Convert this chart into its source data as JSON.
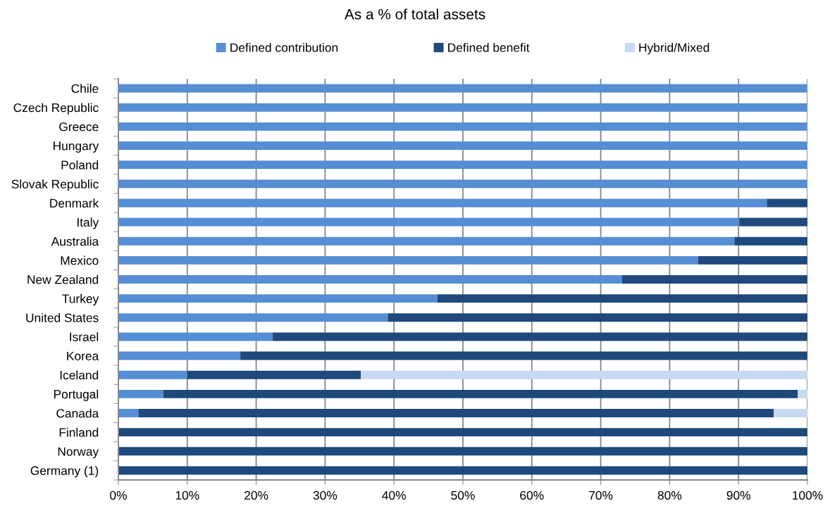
{
  "chart_data": {
    "type": "bar",
    "orientation": "horizontal",
    "stacked": true,
    "title": "As a % of total assets",
    "categories": [
      "Chile",
      "Czech Republic",
      "Greece",
      "Hungary",
      "Poland",
      "Slovak Republic",
      "Denmark",
      "Italy",
      "Australia",
      "Mexico",
      "New Zealand",
      "Turkey",
      "United States",
      "Israel",
      "Korea",
      "Iceland",
      "Portugal",
      "Canada",
      "Finland",
      "Norway",
      "Germany (1)"
    ],
    "series": [
      {
        "name": "Defined contribution",
        "color": "#558ed5",
        "values": [
          100,
          100,
          100,
          100,
          100,
          100,
          94.1,
          90.1,
          89.4,
          84.1,
          73.1,
          46.3,
          39.1,
          22.4,
          17.7,
          10.0,
          6.5,
          2.9,
          null,
          null,
          null
        ]
      },
      {
        "name": "Defined benefit",
        "color": "#1f497d",
        "values": [
          null,
          null,
          null,
          null,
          null,
          null,
          5.9,
          9.9,
          10.6,
          15.9,
          26.9,
          53.7,
          60.9,
          77.6,
          82.3,
          25.2,
          92.1,
          92.2,
          100,
          100,
          100
        ]
      },
      {
        "name": "Hybrid/Mixed",
        "color": "#c6d9f1",
        "values": [
          null,
          null,
          null,
          null,
          null,
          null,
          null,
          null,
          null,
          null,
          null,
          null,
          null,
          null,
          null,
          64.8,
          1.4,
          4.9,
          null,
          null,
          null
        ]
      }
    ],
    "xlim": [
      0,
      100
    ],
    "xticks": [
      {
        "value": 0,
        "label": "0%"
      },
      {
        "value": 10,
        "label": "10%"
      },
      {
        "value": 20,
        "label": "20%"
      },
      {
        "value": 30,
        "label": "30%"
      },
      {
        "value": 40,
        "label": "40%"
      },
      {
        "value": 50,
        "label": "50%"
      },
      {
        "value": 60,
        "label": "60%"
      },
      {
        "value": 70,
        "label": "70%"
      },
      {
        "value": 80,
        "label": "80%"
      },
      {
        "value": 90,
        "label": "90%"
      },
      {
        "value": 100,
        "label": "100%"
      }
    ],
    "grid": "x",
    "legend": "top"
  }
}
